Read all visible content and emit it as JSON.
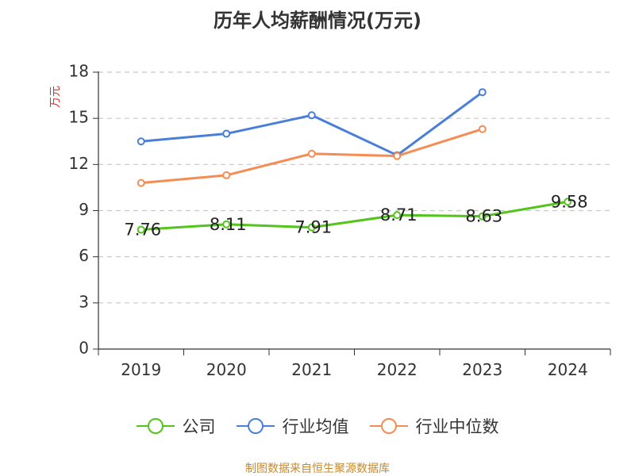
{
  "chart_data": {
    "type": "line",
    "title": "历年人均薪酬情况(万元)",
    "ylabel": "万元",
    "xlabel": "",
    "categories": [
      "2019",
      "2020",
      "2021",
      "2022",
      "2023",
      "2024"
    ],
    "ylim": [
      0,
      18
    ],
    "yticks": [
      0,
      3,
      6,
      9,
      12,
      15,
      18
    ],
    "grid": true,
    "legend_position": "bottom",
    "series": [
      {
        "name": "公司",
        "color": "#52c41a",
        "values": [
          7.76,
          8.11,
          7.91,
          8.71,
          8.63,
          9.58
        ],
        "labels": [
          "7.76",
          "8.11",
          "7.91",
          "8.71",
          "8.63",
          "9.58"
        ]
      },
      {
        "name": "行业均值",
        "color": "#4a7fd8",
        "values": [
          13.5,
          14.0,
          15.2,
          12.6,
          16.7,
          null
        ]
      },
      {
        "name": "行业中位数",
        "color": "#f58c54",
        "values": [
          10.8,
          11.3,
          12.7,
          12.55,
          14.3,
          null
        ]
      }
    ]
  },
  "source": "制图数据来自恒生聚源数据库"
}
